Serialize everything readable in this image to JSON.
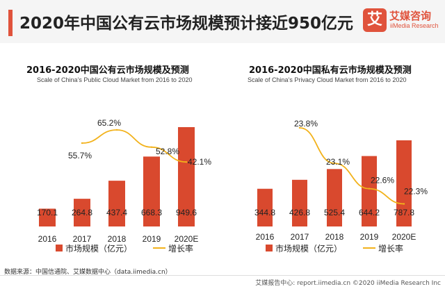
{
  "header": {
    "title": "2020年中国公有云市场规模预计接近950亿元",
    "logo_mark": "艾",
    "logo_cn": "艾媒咨询",
    "logo_en": "iiMedia Research"
  },
  "colors": {
    "bar": "#d9492e",
    "line": "#f2b21b",
    "accent": "#e0533c"
  },
  "legend": {
    "bar_label": "市场规模（亿元）",
    "line_label": "增长率"
  },
  "chart_data": [
    {
      "type": "bar",
      "title": "2016-2020中国公有云市场规模及预测",
      "subtitle": "Scale of China’s Public Cloud Market from 2016 to 2020",
      "categories": [
        "2016",
        "2017",
        "2018",
        "2019",
        "2020E"
      ],
      "series": [
        {
          "name": "市场规模（亿元）",
          "values": [
            170.1,
            264.8,
            437.4,
            668.3,
            949.6
          ],
          "labels": [
            "170.1",
            "264.8",
            "437.4",
            "668.3",
            "949.6"
          ]
        },
        {
          "name": "增长率",
          "type": "line",
          "x": [
            "2017",
            "2018",
            "2019",
            "2020E"
          ],
          "values": [
            55.7,
            65.2,
            52.8,
            42.1
          ],
          "labels": [
            "55.7%",
            "65.2%",
            "52.8%",
            "42.1%"
          ]
        }
      ]
    },
    {
      "type": "bar",
      "title": "2016-2020中国私有云市场规模及预测",
      "subtitle": "Scale of China’s Privacy Cloud Market from 2016 to 2020",
      "categories": [
        "2016",
        "2017",
        "2018",
        "2019",
        "2020E"
      ],
      "series": [
        {
          "name": "市场规模（亿元）",
          "values": [
            344.8,
            426.8,
            525.4,
            644.2,
            787.8
          ],
          "labels": [
            "344.8",
            "426.8",
            "525.4",
            "644.2",
            "787.8"
          ]
        },
        {
          "name": "增长率",
          "type": "line",
          "x": [
            "2017",
            "2018",
            "2019",
            "2020E"
          ],
          "values": [
            23.8,
            23.1,
            22.6,
            22.3
          ],
          "labels": [
            "23.8%",
            "23.1%",
            "22.6%",
            "22.3%"
          ]
        }
      ]
    }
  ],
  "footer": {
    "source": "数据来源：中国信通院、艾媒数据中心（data.iimedia.cn）",
    "copyright": "艾媒报告中心: report.iimedia.cn ©2020 iiMedia Research Inc"
  }
}
